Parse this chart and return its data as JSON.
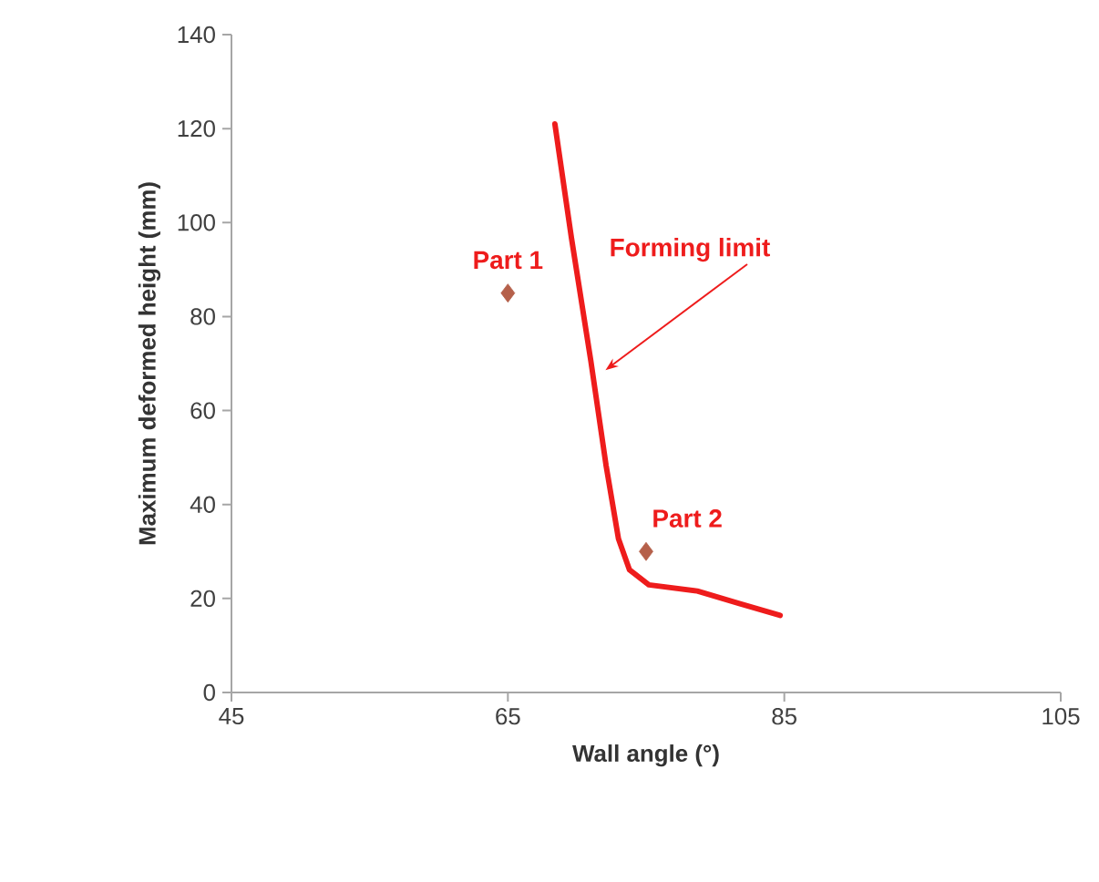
{
  "chart_data": {
    "type": "line",
    "xlabel": "Wall angle (°)",
    "ylabel": "Maximum deformed height (mm)",
    "xlim": [
      45,
      105
    ],
    "xticks": [
      45,
      65,
      85,
      105
    ],
    "ylim": [
      0,
      140
    ],
    "yticks": [
      0,
      20,
      40,
      60,
      80,
      100,
      120,
      140
    ],
    "grid": false,
    "series": [
      {
        "color": "#ee1c1c",
        "line_style": "solid",
        "marker": "none",
        "x": [
          68.4,
          69.6,
          71.0,
          72.1,
          73.0,
          73.8,
          75.2,
          78.7,
          81.8,
          84.7
        ],
        "values": [
          121,
          96.7,
          70.6,
          48.4,
          32.7,
          26.1,
          22.9,
          21.6,
          18.9,
          16.4
        ]
      },
      {
        "type": "scatter",
        "color": "#b5604a",
        "marker": "diamond",
        "x": [
          65,
          75
        ],
        "values": [
          85,
          30
        ]
      }
    ],
    "annotations": [
      {
        "text": "Part 1",
        "x": 65,
        "y": 85
      },
      {
        "text": "Part 2",
        "x": 75,
        "y": 30
      },
      "Forming limit"
    ]
  }
}
